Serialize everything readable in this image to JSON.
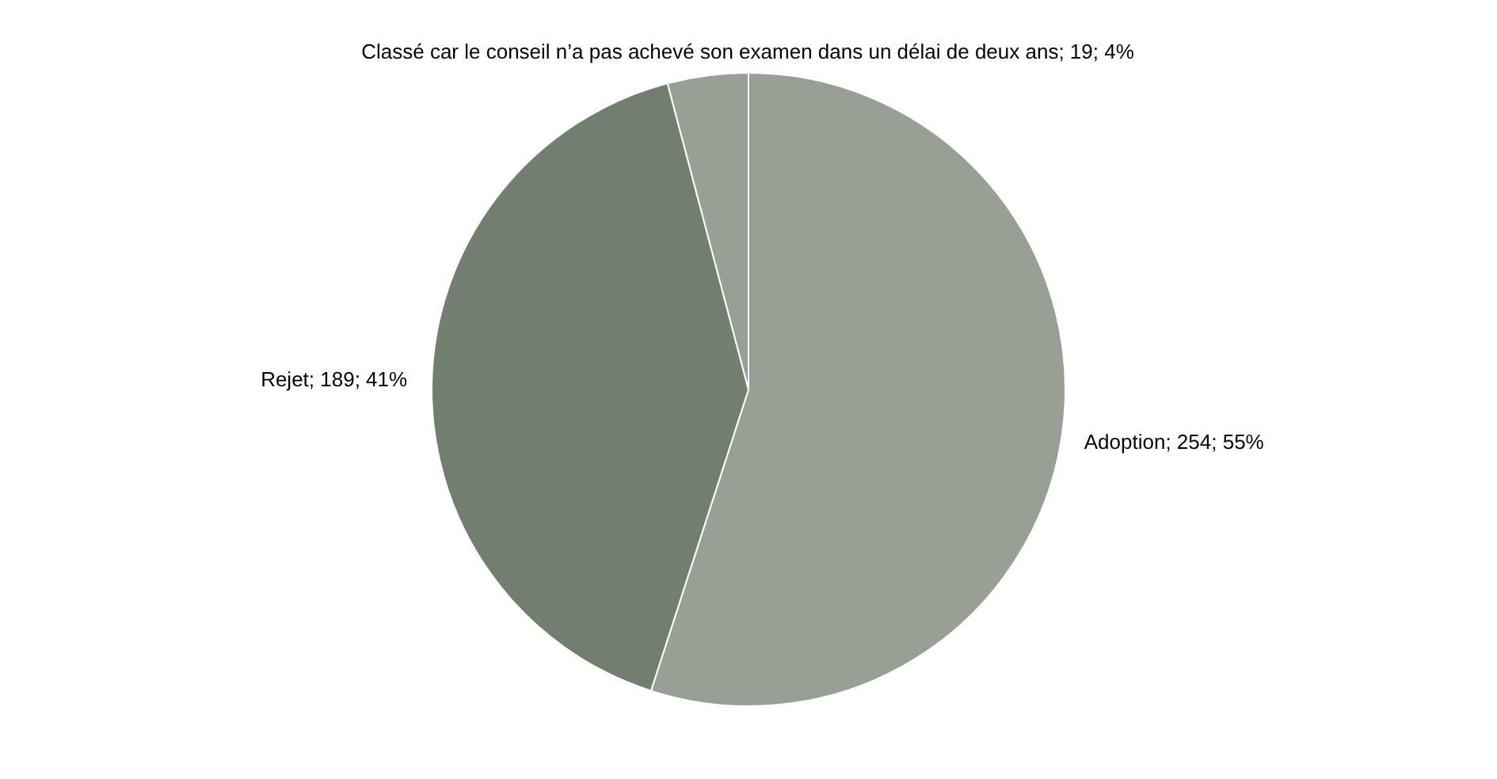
{
  "chart_data": {
    "type": "pie",
    "categories": [
      "Adoption",
      "Rejet",
      "Classé car le conseil n’a pas achevé son examen dans un délai de deux ans"
    ],
    "values": [
      254,
      189,
      19
    ],
    "colors": [
      "#98a095",
      "#737f6e",
      "#98a095"
    ],
    "value_labels": [
      "254; 55%",
      "189; 41%",
      "19; 4%"
    ]
  }
}
